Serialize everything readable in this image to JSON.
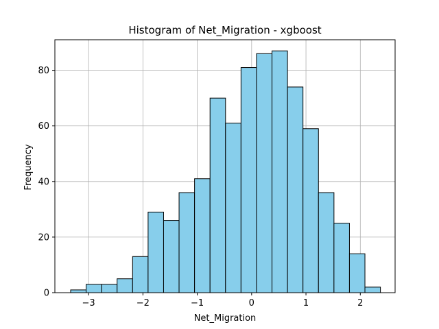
{
  "chart_data": {
    "type": "bar",
    "title": "Histogram of Net_Migration - xgboost",
    "xlabel": "Net_Migration",
    "ylabel": "Frequency",
    "xlim": [
      -3.62,
      2.64
    ],
    "ylim": [
      0,
      91
    ],
    "grid": true,
    "bar_color": "#87CEEB",
    "edge_color": "#000000",
    "bin_edges": [
      -3.33,
      -3.045,
      -2.76,
      -2.475,
      -2.19,
      -1.905,
      -1.62,
      -1.335,
      -1.05,
      -0.765,
      -0.48,
      -0.195,
      0.09,
      0.375,
      0.66,
      0.945,
      1.23,
      1.515,
      1.8,
      2.085,
      2.37
    ],
    "values": [
      1,
      3,
      3,
      5,
      13,
      29,
      26,
      36,
      41,
      70,
      61,
      81,
      86,
      87,
      74,
      59,
      36,
      25,
      14,
      2
    ],
    "x_ticks": [
      -3,
      -2,
      -1,
      0,
      1,
      2
    ],
    "x_tick_labels": [
      "−3",
      "−2",
      "−1",
      "0",
      "1",
      "2"
    ],
    "y_ticks": [
      0,
      20,
      40,
      60,
      80
    ],
    "y_tick_labels": [
      "0",
      "20",
      "40",
      "60",
      "80"
    ]
  }
}
